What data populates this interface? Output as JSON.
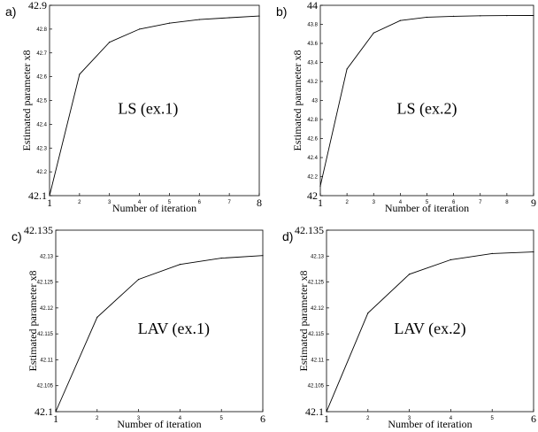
{
  "chart_data": [
    {
      "panel": "a)",
      "type": "line",
      "annotation": "LS (ex.1)",
      "xlabel": "Number of iteration",
      "ylabel": "Estimated parameter x8",
      "xlim": [
        1,
        8
      ],
      "ylim": [
        42.1,
        42.9
      ],
      "x_ticks": [
        {
          "value": 1,
          "label": "1",
          "big": true
        },
        {
          "value": 2,
          "label": "2",
          "big": false
        },
        {
          "value": 3,
          "label": "3",
          "big": false
        },
        {
          "value": 4,
          "label": "4",
          "big": false
        },
        {
          "value": 5,
          "label": "5",
          "big": false
        },
        {
          "value": 6,
          "label": "6",
          "big": false
        },
        {
          "value": 7,
          "label": "7",
          "big": false
        },
        {
          "value": 8,
          "label": "8",
          "big": true
        }
      ],
      "y_ticks": [
        {
          "value": 42.1,
          "label": "42.1",
          "big": true
        },
        {
          "value": 42.2,
          "label": "42.2",
          "big": false
        },
        {
          "value": 42.3,
          "label": "42.3",
          "big": false
        },
        {
          "value": 42.4,
          "label": "42.4",
          "big": false
        },
        {
          "value": 42.5,
          "label": "42.5",
          "big": false
        },
        {
          "value": 42.6,
          "label": "42.6",
          "big": false
        },
        {
          "value": 42.7,
          "label": "42.7",
          "big": false
        },
        {
          "value": 42.8,
          "label": "42.8",
          "big": false
        },
        {
          "value": 42.9,
          "label": "42.9",
          "big": true
        }
      ],
      "x": [
        1,
        2,
        3,
        4,
        5,
        6,
        7,
        8
      ],
      "y": [
        42.1,
        42.61,
        42.745,
        42.8,
        42.825,
        42.84,
        42.848,
        42.855
      ]
    },
    {
      "panel": "b)",
      "type": "line",
      "annotation": "LS (ex.2)",
      "xlabel": "Number of iteration",
      "ylabel": "Estimated parameter x8",
      "xlim": [
        1,
        9
      ],
      "ylim": [
        42,
        44
      ],
      "x_ticks": [
        {
          "value": 1,
          "label": "1",
          "big": true
        },
        {
          "value": 2,
          "label": "2",
          "big": false
        },
        {
          "value": 3,
          "label": "3",
          "big": false
        },
        {
          "value": 4,
          "label": "4",
          "big": false
        },
        {
          "value": 5,
          "label": "5",
          "big": false
        },
        {
          "value": 6,
          "label": "6",
          "big": false
        },
        {
          "value": 7,
          "label": "7",
          "big": false
        },
        {
          "value": 8,
          "label": "8",
          "big": false
        },
        {
          "value": 9,
          "label": "9",
          "big": true
        }
      ],
      "y_ticks": [
        {
          "value": 42,
          "label": "42",
          "big": true
        },
        {
          "value": 42.2,
          "label": "42.2",
          "big": false
        },
        {
          "value": 42.4,
          "label": "42.4",
          "big": false
        },
        {
          "value": 42.6,
          "label": "42.6",
          "big": false
        },
        {
          "value": 42.8,
          "label": "42.8",
          "big": false
        },
        {
          "value": 43,
          "label": "43",
          "big": false
        },
        {
          "value": 43.2,
          "label": "43.2",
          "big": false
        },
        {
          "value": 43.4,
          "label": "43.4",
          "big": false
        },
        {
          "value": 43.6,
          "label": "43.6",
          "big": false
        },
        {
          "value": 43.8,
          "label": "43.8",
          "big": false
        },
        {
          "value": 44,
          "label": "44",
          "big": true
        }
      ],
      "x": [
        1,
        2,
        3,
        4,
        5,
        6,
        7,
        8,
        9
      ],
      "y": [
        42.1,
        43.33,
        43.71,
        43.84,
        43.875,
        43.885,
        43.89,
        43.892,
        43.893
      ]
    },
    {
      "panel": "c)",
      "type": "line",
      "annotation": "LAV (ex.1)",
      "xlabel": "Number of iteration",
      "ylabel": "Estimated parameter x8",
      "xlim": [
        1,
        6
      ],
      "ylim": [
        42.1,
        42.135
      ],
      "x_ticks": [
        {
          "value": 1,
          "label": "1",
          "big": true
        },
        {
          "value": 2,
          "label": "2",
          "big": false
        },
        {
          "value": 3,
          "label": "3",
          "big": false
        },
        {
          "value": 4,
          "label": "4",
          "big": false
        },
        {
          "value": 5,
          "label": "5",
          "big": false
        },
        {
          "value": 6,
          "label": "6",
          "big": true
        }
      ],
      "y_ticks": [
        {
          "value": 42.1,
          "label": "42.1",
          "big": true
        },
        {
          "value": 42.105,
          "label": "42.105",
          "big": false
        },
        {
          "value": 42.11,
          "label": "42.11",
          "big": false
        },
        {
          "value": 42.115,
          "label": "42.115",
          "big": false
        },
        {
          "value": 42.12,
          "label": "42.12",
          "big": false
        },
        {
          "value": 42.125,
          "label": "42.125",
          "big": false
        },
        {
          "value": 42.13,
          "label": "42.13",
          "big": false
        },
        {
          "value": 42.135,
          "label": "42.135",
          "big": true
        }
      ],
      "x": [
        1,
        2,
        3,
        4,
        5,
        6
      ],
      "y": [
        42.1,
        42.1182,
        42.1255,
        42.1284,
        42.1296,
        42.1301
      ]
    },
    {
      "panel": "d)",
      "type": "line",
      "annotation": "LAV (ex.2)",
      "xlabel": "Number of iteration",
      "ylabel": "Estimated parameter x8",
      "xlim": [
        1,
        6
      ],
      "ylim": [
        42.1,
        42.135
      ],
      "x_ticks": [
        {
          "value": 1,
          "label": "1",
          "big": true
        },
        {
          "value": 2,
          "label": "2",
          "big": false
        },
        {
          "value": 3,
          "label": "3",
          "big": false
        },
        {
          "value": 4,
          "label": "4",
          "big": false
        },
        {
          "value": 5,
          "label": "5",
          "big": false
        },
        {
          "value": 6,
          "label": "6",
          "big": true
        }
      ],
      "y_ticks": [
        {
          "value": 42.1,
          "label": "42.1",
          "big": true
        },
        {
          "value": 42.105,
          "label": "42.105",
          "big": false
        },
        {
          "value": 42.11,
          "label": "42.11",
          "big": false
        },
        {
          "value": 42.115,
          "label": "42.115",
          "big": false
        },
        {
          "value": 42.12,
          "label": "42.12",
          "big": false
        },
        {
          "value": 42.125,
          "label": "42.125",
          "big": false
        },
        {
          "value": 42.13,
          "label": "42.13",
          "big": false
        },
        {
          "value": 42.135,
          "label": "42.135",
          "big": true
        }
      ],
      "x": [
        1,
        2,
        3,
        4,
        5,
        6
      ],
      "y": [
        42.1,
        42.119,
        42.1265,
        42.1293,
        42.1305,
        42.1308
      ]
    }
  ]
}
